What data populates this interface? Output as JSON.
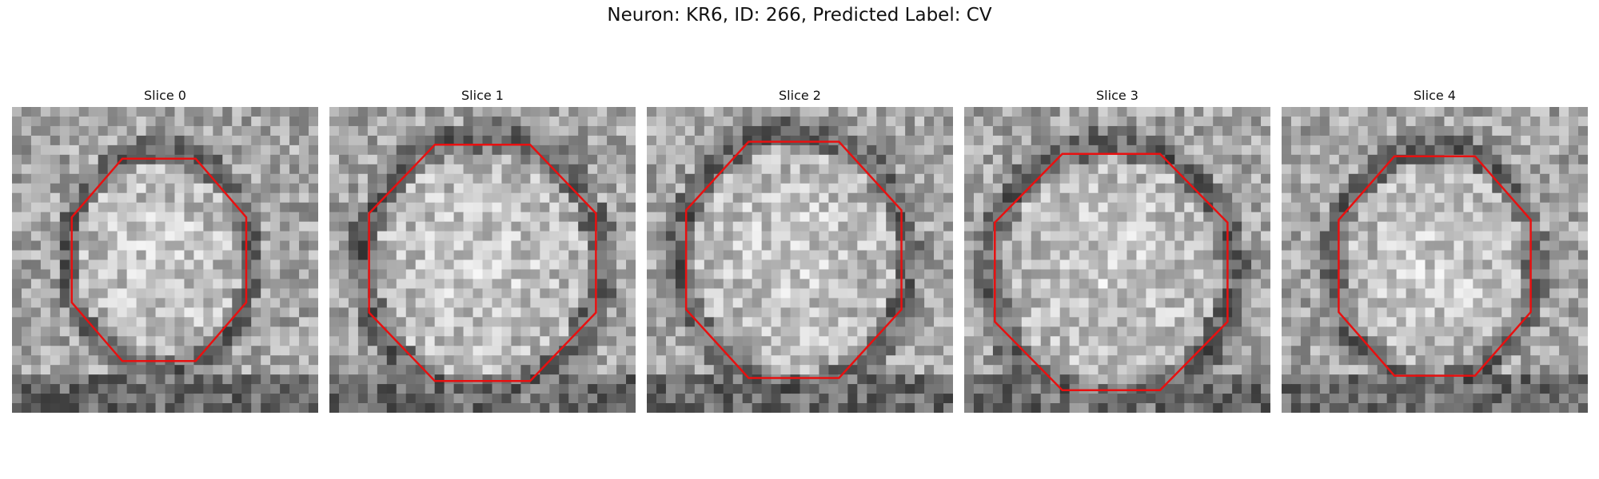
{
  "figure": {
    "title": "Neuron: KR6, ID: 266, Predicted Label: CV",
    "contour_color": "#e81010"
  },
  "panels": [
    {
      "title": "Slice 0"
    },
    {
      "title": "Slice 1"
    },
    {
      "title": "Slice 2"
    },
    {
      "title": "Slice 3"
    },
    {
      "title": "Slice 4"
    }
  ]
}
